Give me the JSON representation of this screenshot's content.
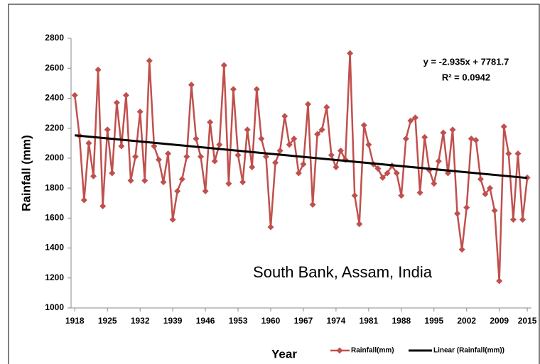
{
  "chart_data": {
    "type": "line",
    "title": "South Bank, Assam, India",
    "x_label": "Year",
    "y_label": "Rainfall (mm)",
    "annotations": [
      "y = -2.935x + 7781.7",
      "R² = 0.0942"
    ],
    "x": [
      1918,
      1919,
      1920,
      1921,
      1922,
      1923,
      1924,
      1925,
      1926,
      1927,
      1928,
      1929,
      1930,
      1931,
      1932,
      1933,
      1934,
      1935,
      1936,
      1937,
      1938,
      1939,
      1940,
      1941,
      1942,
      1943,
      1944,
      1945,
      1946,
      1947,
      1948,
      1949,
      1950,
      1951,
      1952,
      1953,
      1954,
      1955,
      1956,
      1957,
      1958,
      1959,
      1960,
      1961,
      1962,
      1963,
      1964,
      1965,
      1966,
      1967,
      1968,
      1969,
      1970,
      1971,
      1972,
      1973,
      1974,
      1975,
      1976,
      1977,
      1978,
      1979,
      1980,
      1981,
      1982,
      1983,
      1984,
      1985,
      1986,
      1987,
      1988,
      1989,
      1990,
      1991,
      1992,
      1993,
      1994,
      1995,
      1996,
      1997,
      1998,
      1999,
      2000,
      2001,
      2002,
      2003,
      2004,
      2005,
      2006,
      2007,
      2008,
      2009,
      2010,
      2011,
      2012,
      2013,
      2014,
      2015
    ],
    "series": [
      {
        "name": "Rainfall(mm)",
        "color": "#c0504d",
        "values": [
          2420,
          2150,
          1720,
          2100,
          1880,
          2590,
          1680,
          2190,
          1900,
          2370,
          2080,
          2420,
          1850,
          2010,
          2310,
          1850,
          2650,
          2080,
          1990,
          1840,
          2030,
          1590,
          1780,
          1860,
          2010,
          2490,
          2130,
          2010,
          1780,
          2240,
          1980,
          2090,
          2620,
          1830,
          2460,
          2020,
          1840,
          2190,
          1940,
          2460,
          2130,
          2010,
          1540,
          1970,
          2050,
          2280,
          2090,
          2130,
          1900,
          1960,
          2360,
          1690,
          2160,
          2190,
          2340,
          2020,
          1940,
          2050,
          1990,
          2700,
          1750,
          1560,
          2220,
          2090,
          1960,
          1930,
          1870,
          1900,
          1950,
          1900,
          1750,
          2130,
          2250,
          2270,
          1770,
          2140,
          1920,
          1830,
          1980,
          2170,
          1900,
          2190,
          1630,
          1390,
          1670,
          2130,
          2120,
          1860,
          1760,
          1800,
          1650,
          1180,
          2210,
          2030,
          1590,
          2030,
          1590,
          1870
        ]
      }
    ],
    "trend": {
      "name": "Linear (Rainfall(mm))",
      "color": "#000000",
      "x": [
        1918,
        2015
      ],
      "values": [
        2152.4,
        1867.7
      ]
    },
    "xlim": [
      1917.2,
      2015.9
    ],
    "xticks": [
      1918,
      1925,
      1932,
      1939,
      1946,
      1953,
      1960,
      1967,
      1974,
      1981,
      1988,
      1995,
      2002,
      2009,
      2015
    ],
    "ylim": [
      1000,
      2800
    ],
    "yticks": [
      1000,
      1200,
      1400,
      1600,
      1800,
      2000,
      2200,
      2400,
      2600,
      2800
    ],
    "grid": false,
    "legend": "bottom-right"
  }
}
